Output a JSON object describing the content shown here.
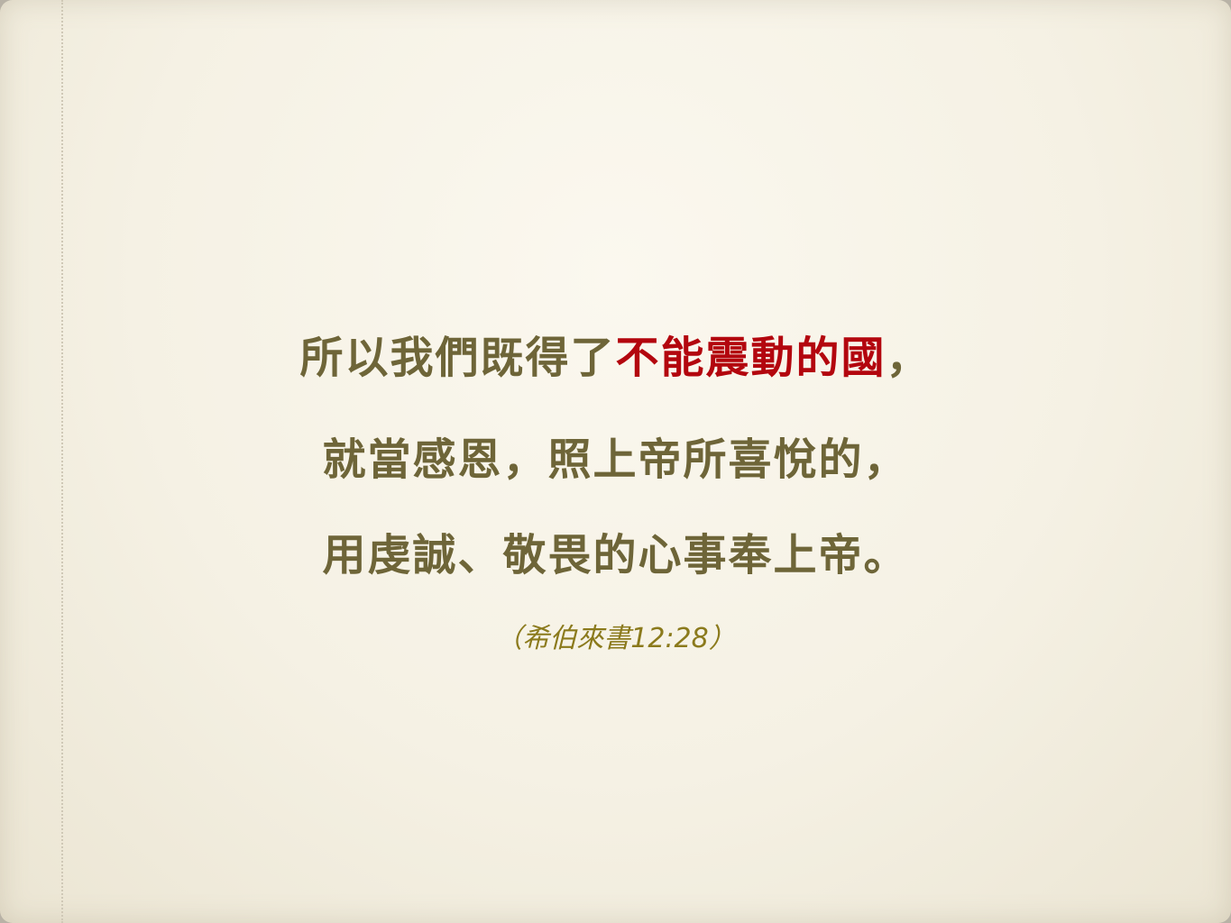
{
  "verse": {
    "line1_before": "所以我們既得了",
    "line1_highlight": "不能震動的國",
    "line1_after": "，",
    "line2": "就當感恩，照上帝所喜悅的，",
    "line3": "用虔誠、敬畏的心事奉上帝。"
  },
  "reference": "（希伯來書12:28）",
  "colors": {
    "text": "#6e6538",
    "highlight": "#b3060e",
    "reference": "#8b7a1c",
    "background": "#f7f3e8"
  }
}
